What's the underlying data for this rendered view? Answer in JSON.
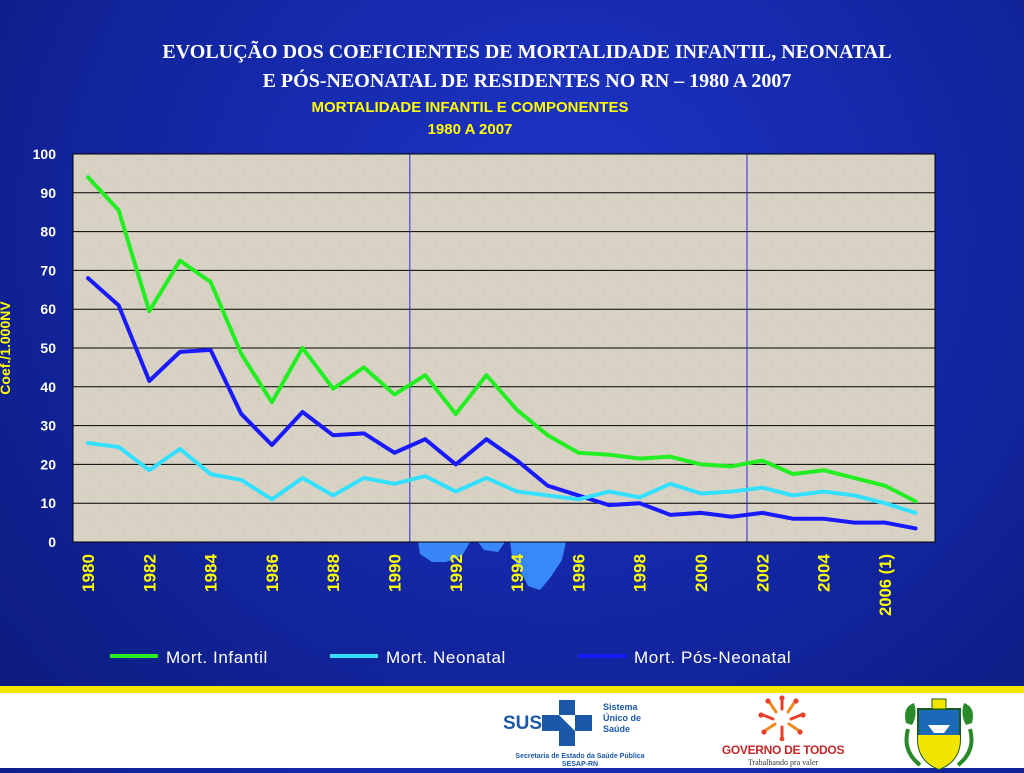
{
  "slide": {
    "title_line1": "EVOLUÇÃO DOS COEFICIENTES DE MORTALIDADE INFANTIL, NEONATAL",
    "title_line2": "E PÓS-NEONATAL DE RESIDENTES NO RN – 1980 A 2007"
  },
  "chart_data": {
    "type": "line",
    "title": "MORTALIDADE INFANTIL E COMPONENTES",
    "subtitle": "1980 A 2007",
    "xlabel": "",
    "ylabel": "Coef./1.000NV",
    "ylim": [
      0,
      100
    ],
    "yticks": [
      0,
      10,
      20,
      30,
      40,
      50,
      60,
      70,
      80,
      90,
      100
    ],
    "grid": true,
    "legend_position": "bottom",
    "x": [
      "1980",
      "1981",
      "1982",
      "1983",
      "1984",
      "1985",
      "1986",
      "1987",
      "1988",
      "1989",
      "1990",
      "1991",
      "1992",
      "1993",
      "1994",
      "1995",
      "1996",
      "1997",
      "1998",
      "1999",
      "2000",
      "2001",
      "2002",
      "2003",
      "2004",
      "2005",
      "2006 (1)",
      "2007"
    ],
    "x_tick_labels": [
      "1980",
      "1982",
      "1984",
      "1986",
      "1988",
      "1990",
      "1992",
      "1994",
      "1996",
      "1998",
      "2000",
      "2002",
      "2004",
      "2006 (1)"
    ],
    "vertical_markers": [
      "1991",
      "2002"
    ],
    "series": [
      {
        "name": "Mort. Infantil",
        "color": "#22ee22",
        "values": [
          94,
          85.5,
          59.5,
          72.5,
          67,
          48.5,
          36,
          50,
          39.5,
          45,
          38,
          43,
          33,
          43,
          34,
          27.5,
          23,
          22.5,
          21.5,
          22,
          20,
          19.5,
          21,
          17.5,
          18.5,
          16.5,
          14.5,
          10.5
        ]
      },
      {
        "name": "Mort. Neonatal",
        "color": "#33e0ff",
        "values": [
          25.5,
          24.5,
          18.5,
          24,
          17.5,
          16,
          11,
          16.5,
          12,
          16.5,
          15,
          17,
          13,
          16.5,
          13,
          12,
          11,
          13,
          11.5,
          15,
          12.5,
          13,
          14,
          12,
          13,
          12,
          10,
          7.5
        ]
      },
      {
        "name": "Mort. Pós-Neonatal",
        "color": "#1a1aff",
        "values": [
          68,
          61,
          41.5,
          49,
          49.5,
          33,
          25,
          33.5,
          27.5,
          28,
          23,
          26.5,
          20,
          26.5,
          21,
          14.5,
          12,
          9.5,
          10,
          7,
          7.5,
          6.5,
          7.5,
          6,
          6,
          5,
          5,
          3.5
        ]
      }
    ]
  },
  "footer": {
    "sus_word": "SUS",
    "sus_name_1": "Sistema",
    "sus_name_2": "Único de",
    "sus_name_3": "Saúde",
    "sus_sub_1": "Secretaria de Estado da Saúde Pública",
    "sus_sub_2": "SESAP-RN",
    "gov_name": "GOVERNO DE TODOS",
    "gov_slogan": "Trabalhando pra valer",
    "sus_cross_icon": "sus-cross-icon",
    "gov_mark_icon": "people-circle-icon",
    "crest_icon": "state-coat-of-arms-icon"
  }
}
